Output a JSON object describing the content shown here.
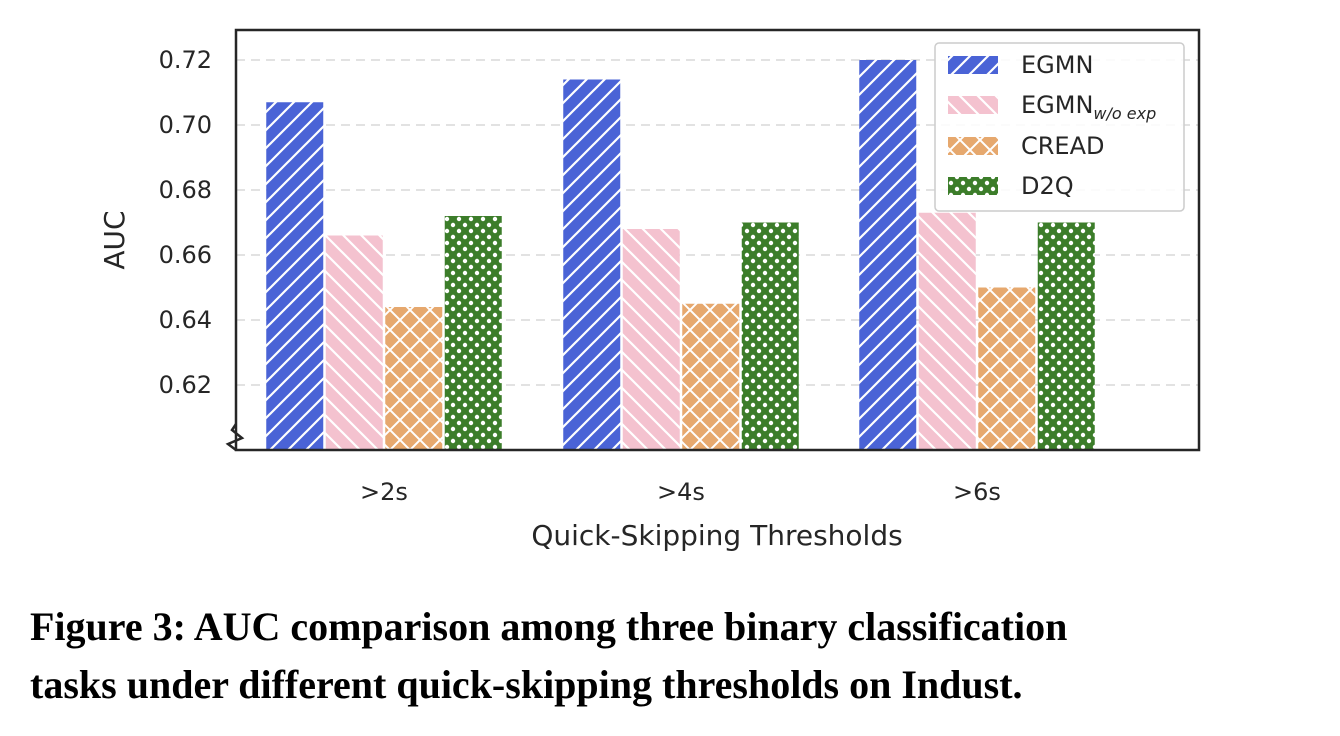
{
  "chart_data": {
    "type": "bar",
    "title": "",
    "xlabel": "Quick-Skipping Thresholds",
    "ylabel": "AUC",
    "categories": [
      ">2s",
      ">4s",
      ">6s"
    ],
    "ylim": [
      0.6,
      0.73
    ],
    "yticks": [
      "0.62",
      "0.64",
      "0.66",
      "0.68",
      "0.70",
      "0.72"
    ],
    "ytick_values": [
      0.62,
      0.64,
      0.66,
      0.68,
      0.7,
      0.72
    ],
    "grid": true,
    "legend_position": "top-right",
    "series": [
      {
        "name": "EGMN",
        "legend_base": "EGMN",
        "legend_sub": "",
        "color": "#4a63d6",
        "pattern": "diag-forward",
        "values": [
          0.707,
          0.714,
          0.72
        ]
      },
      {
        "name": "EGMNw/o exp",
        "legend_base": "EGMN",
        "legend_sub": "w/o exp",
        "color": "#f4c2cf",
        "pattern": "diag-back",
        "values": [
          0.666,
          0.668,
          0.673
        ]
      },
      {
        "name": "CREAD",
        "legend_base": "CREAD",
        "legend_sub": "",
        "color": "#e6a86e",
        "pattern": "crosshatch",
        "values": [
          0.644,
          0.645,
          0.65
        ]
      },
      {
        "name": "D2Q",
        "legend_base": "D2Q",
        "legend_sub": "",
        "color": "#3c7d2a",
        "pattern": "dots",
        "values": [
          0.672,
          0.67,
          0.67
        ]
      }
    ]
  },
  "caption": {
    "line1": "Figure 3: AUC comparison among three binary classification",
    "line2": "tasks under different quick-skipping thresholds on Indust."
  }
}
